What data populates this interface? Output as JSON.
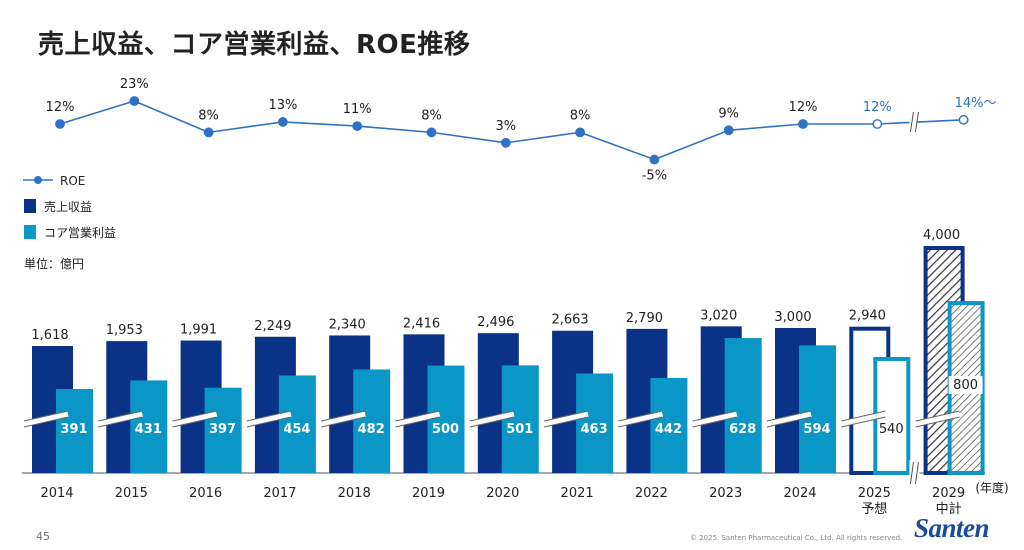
{
  "title": "売上収益、コア営業利益、ROE推移",
  "page_number": "45",
  "copyright": "© 2025. Santen Pharmaceutical Co., Ltd. All rights reserved.",
  "logo_text": "Santen",
  "colors": {
    "revenue": "#0a3286",
    "core_op": "#0a97c7",
    "roe": "#2f72c4",
    "label_dark": "#222222"
  },
  "chart_data": {
    "type": "bar",
    "title": "売上収益、コア営業利益、ROE推移",
    "unit": "単位：億円",
    "x_unit": "(年度)",
    "categories": [
      "2014",
      "2015",
      "2016",
      "2017",
      "2018",
      "2019",
      "2020",
      "2021",
      "2022",
      "2023",
      "2024",
      "2025",
      "2029"
    ],
    "category_sublabels": [
      "",
      "",
      "",
      "",
      "",
      "",
      "",
      "",
      "",
      "",
      "",
      "予想",
      "中計"
    ],
    "legend": [
      "ROE",
      "売上収益",
      "コア営業利益"
    ],
    "series": [
      {
        "name": "売上収益",
        "values": [
          1618,
          1953,
          1991,
          2249,
          2340,
          2416,
          2496,
          2663,
          2790,
          3020,
          3000,
          2940,
          4000
        ],
        "labels": [
          "1,618",
          "1,953",
          "1,991",
          "2,249",
          "2,340",
          "2,416",
          "2,496",
          "2,663",
          "2,790",
          "3,020",
          "3,000",
          "2,940",
          "4,000"
        ]
      },
      {
        "name": "コア営業利益",
        "values": [
          391,
          431,
          397,
          454,
          482,
          500,
          501,
          463,
          442,
          628,
          594,
          540,
          800
        ],
        "labels": [
          "391",
          "431",
          "397",
          "454",
          "482",
          "500",
          "501",
          "463",
          "442",
          "628",
          "594",
          "540",
          "800"
        ]
      },
      {
        "name": "ROE",
        "values": [
          12,
          23,
          8,
          13,
          11,
          8,
          3,
          8,
          -5,
          9,
          12,
          12,
          14
        ],
        "labels": [
          "12%",
          "23%",
          "8%",
          "13%",
          "11%",
          "8%",
          "3%",
          "8%",
          "-5%",
          "9%",
          "12%",
          "12%",
          "14%～"
        ]
      }
    ],
    "forecast_categories": [
      "2025",
      "2029"
    ],
    "axis_break": true
  }
}
